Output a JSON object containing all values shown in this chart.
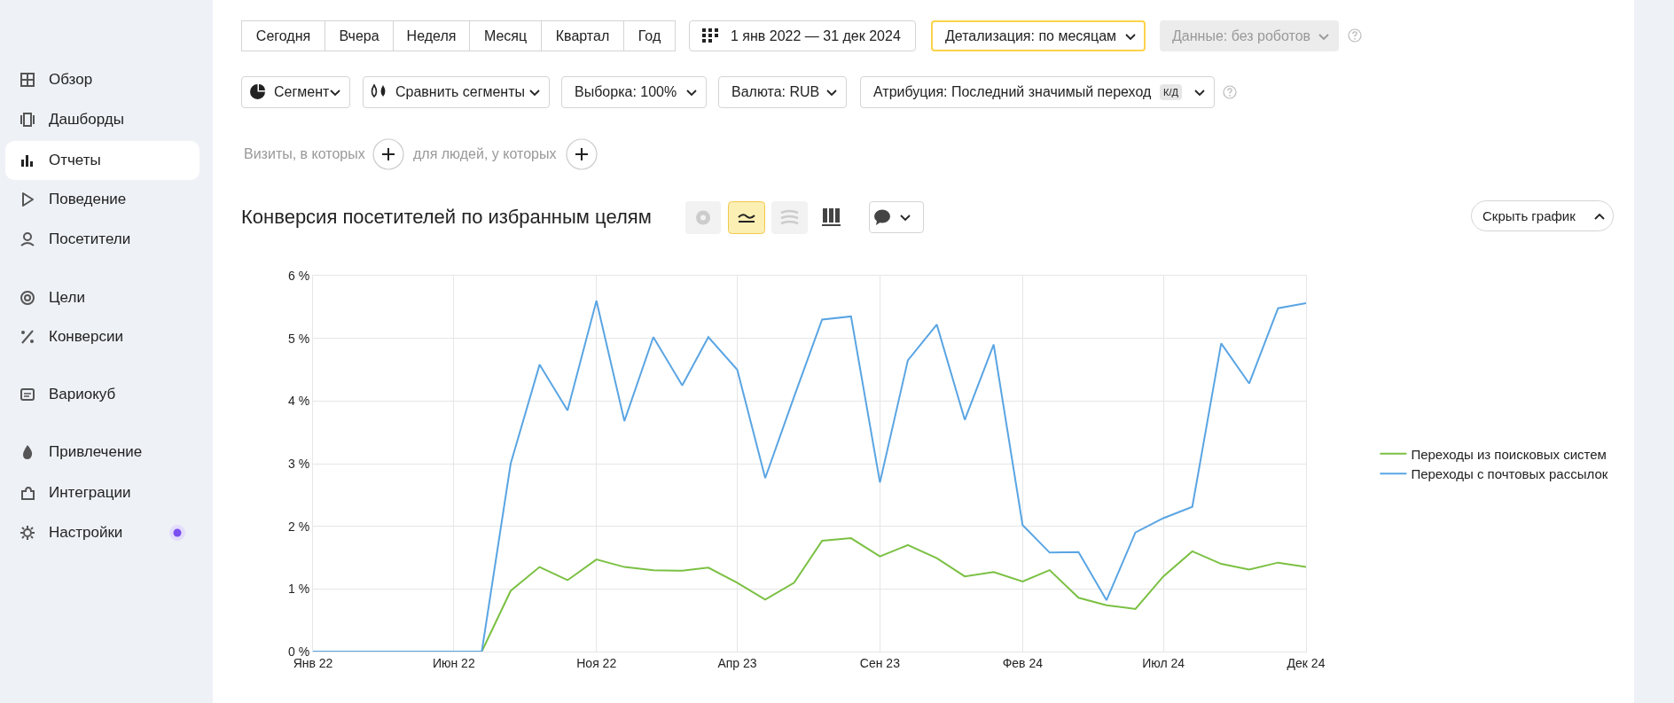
{
  "chart_data": {
    "type": "line",
    "title": "Конверсия посетителей по избранным целям",
    "x": [
      "2022-01",
      "2022-02",
      "2022-03",
      "2022-04",
      "2022-05",
      "2022-06",
      "2022-07",
      "2022-08",
      "2022-09",
      "2022-10",
      "2022-11",
      "2022-12",
      "2023-01",
      "2023-02",
      "2023-03",
      "2023-04",
      "2023-05",
      "2023-06",
      "2023-07",
      "2023-08",
      "2023-09",
      "2023-10",
      "2023-11",
      "2023-12",
      "2024-01",
      "2024-02",
      "2024-03",
      "2024-04",
      "2024-05",
      "2024-06",
      "2024-07",
      "2024-08",
      "2024-09",
      "2024-10",
      "2024-11",
      "2024-12"
    ],
    "series": [
      {
        "name": "Переходы из поисковых систем",
        "color": "#7bc043",
        "values": [
          null,
          null,
          null,
          null,
          null,
          0,
          0,
          0.97,
          1.35,
          1.14,
          1.47,
          1.35,
          1.3,
          1.29,
          1.34,
          1.1,
          0.83,
          1.1,
          1.77,
          1.81,
          1.52,
          1.7,
          1.49,
          1.2,
          1.27,
          1.12,
          1.3,
          0.86,
          0.74,
          0.68,
          1.2,
          1.6,
          1.4,
          1.31,
          1.42,
          1.35
        ]
      },
      {
        "name": "Переходы с почтовых рассылок",
        "color": "#5aa5e3",
        "values": [
          0,
          0,
          0,
          0,
          0,
          0,
          0,
          3.0,
          4.58,
          3.85,
          5.6,
          3.68,
          5.02,
          4.25,
          5.02,
          4.5,
          2.77,
          4.07,
          5.3,
          5.35,
          2.7,
          4.65,
          5.22,
          3.7,
          4.9,
          2.02,
          1.58,
          1.59,
          0.82,
          1.9,
          2.13,
          2.31,
          4.92,
          4.28,
          5.48,
          5.56
        ]
      }
    ],
    "xlim": [
      "2022-01",
      "2024-12"
    ],
    "xticks": [
      {
        "value": "2022-01",
        "label": "Янв 22"
      },
      {
        "value": "2022-06",
        "label": "Июн 22"
      },
      {
        "value": "2022-11",
        "label": "Ноя 22"
      },
      {
        "value": "2023-04",
        "label": "Апр 23"
      },
      {
        "value": "2023-09",
        "label": "Сен 23"
      },
      {
        "value": "2024-02",
        "label": "Фев 24"
      },
      {
        "value": "2024-07",
        "label": "Июл 24"
      },
      {
        "value": "2024-12",
        "label": "Дек 24"
      }
    ],
    "ylim": [
      0,
      6
    ],
    "yticks": [
      {
        "value": 0,
        "label": "0 %"
      },
      {
        "value": 1,
        "label": "1 %"
      },
      {
        "value": 2,
        "label": "2 %"
      },
      {
        "value": 3,
        "label": "3 %"
      },
      {
        "value": 4,
        "label": "4 %"
      },
      {
        "value": 5,
        "label": "5 %"
      },
      {
        "value": 6,
        "label": "6 %"
      }
    ],
    "grid": true,
    "legend": "right",
    "marker": "none",
    "line_style": "solid",
    "annotations": [
      "Обзор",
      "Дашборды",
      "Отчеты",
      "Поведение",
      "Посетители",
      "Цели",
      "Конверсии",
      "Вариокуб",
      "Привлечение",
      "Интеграции",
      "Настройки",
      "Сегодня",
      "Вчера",
      "Неделя",
      "Месяц",
      "Квартал",
      "Год",
      "1 янв 2022 — 31 дек 2024",
      "Детализация: по месяцам",
      "Данные: без роботов",
      "Сегмент",
      "Сравнить сегменты",
      "Выборка: 100%",
      "Валюта: RUB",
      "Атрибуция: Последний значимый переход",
      "К/Д",
      "Визиты, в которых",
      "для людей, у которых",
      "Скрыть график"
    ]
  }
}
